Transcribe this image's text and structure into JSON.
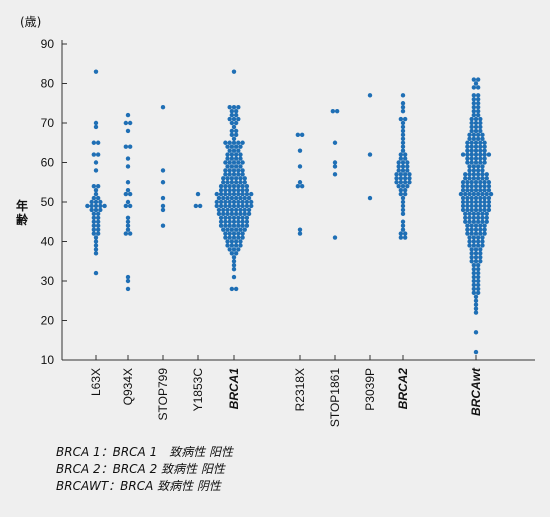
{
  "chart_data": {
    "type": "scatter",
    "unit_label": "(歳)",
    "ylabel": "年齢",
    "ylim": [
      10,
      90
    ],
    "yticks": [
      10,
      20,
      30,
      40,
      50,
      60,
      70,
      80,
      90
    ],
    "colors": {
      "points": "#1f6fb5",
      "axis": "#333333"
    },
    "categories": [
      {
        "label": "L63X",
        "italic": false,
        "ages": [
          83,
          70,
          69,
          65,
          65,
          62,
          62,
          60,
          58,
          54,
          54,
          53,
          52,
          51,
          51,
          50,
          50,
          50,
          49,
          49,
          49,
          49,
          49,
          48,
          48,
          48,
          47,
          47,
          46,
          46,
          45,
          45,
          44,
          44,
          43,
          43,
          42,
          42,
          41,
          40,
          39,
          38,
          37,
          32
        ]
      },
      {
        "label": "Q934X",
        "italic": false,
        "ages": [
          72,
          70,
          70,
          68,
          64,
          64,
          61,
          59,
          55,
          53,
          52,
          52,
          50,
          49,
          49,
          46,
          45,
          44,
          43,
          42,
          42,
          31,
          30,
          28
        ]
      },
      {
        "label": "STOP799",
        "italic": false,
        "ages": [
          74,
          58,
          55,
          51,
          49,
          48,
          44
        ]
      },
      {
        "label": "Y1853C",
        "italic": false,
        "ages": [
          52,
          49,
          49
        ]
      },
      {
        "label": "BRCA1",
        "italic": true,
        "ages": [
          83,
          74,
          74,
          74,
          73,
          73,
          72,
          72,
          71,
          71,
          71,
          70,
          70,
          69,
          68,
          68,
          67,
          67,
          66,
          65,
          65,
          65,
          65,
          65,
          64,
          64,
          64,
          64,
          63,
          63,
          63,
          62,
          62,
          62,
          62,
          61,
          61,
          61,
          61,
          60,
          60,
          60,
          60,
          60,
          59,
          59,
          59,
          59,
          58,
          58,
          58,
          58,
          58,
          57,
          57,
          57,
          57,
          57,
          56,
          56,
          56,
          56,
          56,
          56,
          55,
          55,
          55,
          55,
          55,
          55,
          54,
          54,
          54,
          54,
          54,
          54,
          54,
          53,
          53,
          53,
          53,
          53,
          53,
          53,
          52,
          52,
          52,
          52,
          52,
          52,
          52,
          52,
          52,
          51,
          51,
          51,
          51,
          51,
          51,
          51,
          51,
          50,
          50,
          50,
          50,
          50,
          50,
          50,
          50,
          50,
          49,
          49,
          49,
          49,
          49,
          49,
          49,
          49,
          49,
          48,
          48,
          48,
          48,
          48,
          48,
          48,
          48,
          47,
          47,
          47,
          47,
          47,
          47,
          47,
          47,
          46,
          46,
          46,
          46,
          46,
          46,
          46,
          45,
          45,
          45,
          45,
          45,
          45,
          45,
          44,
          44,
          44,
          44,
          44,
          44,
          44,
          43,
          43,
          43,
          43,
          43,
          43,
          42,
          42,
          42,
          42,
          42,
          41,
          41,
          41,
          41,
          41,
          40,
          40,
          40,
          40,
          39,
          39,
          39,
          39,
          38,
          38,
          38,
          37,
          37,
          36,
          35,
          34,
          33,
          31,
          28,
          28
        ]
      },
      {
        "label": "R2318X",
        "italic": false,
        "ages": [
          67,
          67,
          63,
          59,
          55,
          54,
          54,
          43,
          42
        ]
      },
      {
        "label": "STOP1861",
        "italic": false,
        "ages": [
          73,
          73,
          65,
          60,
          59,
          57,
          41
        ]
      },
      {
        "label": "P3039P",
        "italic": false,
        "ages": [
          77,
          62,
          51
        ]
      },
      {
        "label": "BRCA2",
        "italic": true,
        "ages": [
          77,
          75,
          74,
          73,
          71,
          71,
          70,
          69,
          68,
          67,
          66,
          65,
          64,
          63,
          62,
          62,
          61,
          61,
          60,
          60,
          60,
          59,
          59,
          59,
          58,
          58,
          58,
          57,
          57,
          57,
          57,
          56,
          56,
          56,
          56,
          55,
          55,
          55,
          55,
          54,
          54,
          54,
          53,
          53,
          52,
          52,
          51,
          50,
          49,
          48,
          47,
          45,
          44,
          43,
          42,
          42,
          41,
          41
        ]
      },
      {
        "label": "BRCAwt",
        "italic": true,
        "ages": [
          81,
          81,
          80,
          79,
          79,
          77,
          77,
          76,
          76,
          75,
          75,
          74,
          74,
          73,
          73,
          72,
          72,
          71,
          71,
          71,
          70,
          70,
          70,
          69,
          69,
          69,
          68,
          68,
          68,
          67,
          67,
          67,
          67,
          66,
          66,
          66,
          66,
          65,
          65,
          65,
          65,
          65,
          64,
          64,
          64,
          64,
          64,
          63,
          63,
          63,
          63,
          63,
          62,
          62,
          62,
          62,
          62,
          62,
          62,
          61,
          61,
          61,
          61,
          61,
          60,
          60,
          60,
          60,
          60,
          59,
          59,
          59,
          59,
          58,
          58,
          58,
          58,
          57,
          57,
          57,
          57,
          57,
          57,
          56,
          56,
          56,
          56,
          56,
          56,
          55,
          55,
          55,
          55,
          55,
          55,
          55,
          54,
          54,
          54,
          54,
          54,
          54,
          54,
          53,
          53,
          53,
          53,
          53,
          53,
          53,
          52,
          52,
          52,
          52,
          52,
          52,
          52,
          52,
          51,
          51,
          51,
          51,
          51,
          51,
          51,
          50,
          50,
          50,
          50,
          50,
          50,
          50,
          49,
          49,
          49,
          49,
          49,
          49,
          49,
          48,
          48,
          48,
          48,
          48,
          48,
          48,
          47,
          47,
          47,
          47,
          47,
          47,
          46,
          46,
          46,
          46,
          46,
          46,
          45,
          45,
          45,
          45,
          45,
          45,
          44,
          44,
          44,
          44,
          44,
          43,
          43,
          43,
          43,
          43,
          42,
          42,
          42,
          42,
          42,
          41,
          41,
          41,
          41,
          40,
          40,
          40,
          40,
          39,
          39,
          39,
          39,
          38,
          38,
          38,
          37,
          37,
          37,
          36,
          36,
          36,
          35,
          35,
          35,
          34,
          34,
          33,
          33,
          32,
          32,
          31,
          31,
          30,
          30,
          29,
          29,
          28,
          28,
          27,
          27,
          26,
          25,
          24,
          23,
          22,
          17,
          12
        ]
      }
    ],
    "footnotes": [
      "BRCA 1：BRCA 1　致病性 阳性",
      "BRCA 2：BRCA 2 致病性 阳性",
      "BRCAWT：BRCA 致病性 阴性"
    ]
  }
}
